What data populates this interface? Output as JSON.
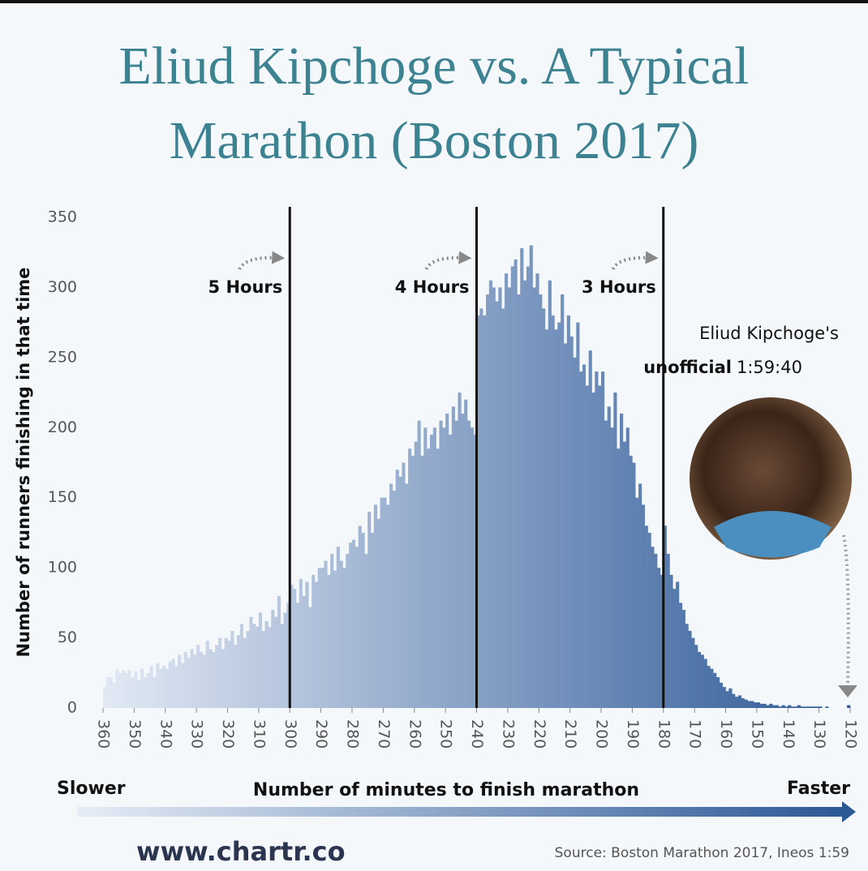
{
  "chart_data": {
    "type": "histogram",
    "title": [
      "Eliud Kipchoge vs. A Typical",
      "Marathon (Boston 2017)"
    ],
    "ylabel": "Number of runners finishing in that time",
    "xlabel": "Number of minutes to finish marathon",
    "direction_labels": {
      "left": "Slower",
      "right": "Faster"
    },
    "xlim": [
      360,
      120
    ],
    "ylim": [
      0,
      350
    ],
    "xticks": [
      360,
      350,
      340,
      330,
      320,
      310,
      300,
      290,
      280,
      270,
      260,
      250,
      240,
      230,
      220,
      210,
      200,
      190,
      180,
      170,
      160,
      150,
      140,
      130,
      120
    ],
    "yticks": [
      0,
      50,
      100,
      150,
      200,
      250,
      300,
      350
    ],
    "color_range": [
      "#e2e9f4",
      "#2c5896"
    ],
    "markers": [
      {
        "x": 300,
        "label": "5 Hours"
      },
      {
        "x": 240,
        "label": "4 Hours"
      },
      {
        "x": 180,
        "label": "3 Hours"
      }
    ],
    "annotation": {
      "line1": "Eliud Kipchoge's",
      "bold": "unofficial",
      "time": "1:59:40"
    },
    "bins": [
      120,
      121,
      122,
      123,
      124,
      125,
      126,
      127,
      128,
      129,
      130,
      131,
      132,
      133,
      134,
      135,
      136,
      137,
      138,
      139,
      140,
      141,
      142,
      143,
      144,
      145,
      146,
      147,
      148,
      149,
      150,
      151,
      152,
      153,
      154,
      155,
      156,
      157,
      158,
      159,
      160,
      161,
      162,
      163,
      164,
      165,
      166,
      167,
      168,
      169,
      170,
      171,
      172,
      173,
      174,
      175,
      176,
      177,
      178,
      179,
      180,
      181,
      182,
      183,
      184,
      185,
      186,
      187,
      188,
      189,
      190,
      191,
      192,
      193,
      194,
      195,
      196,
      197,
      198,
      199,
      200,
      201,
      202,
      203,
      204,
      205,
      206,
      207,
      208,
      209,
      210,
      211,
      212,
      213,
      214,
      215,
      216,
      217,
      218,
      219,
      220,
      221,
      222,
      223,
      224,
      225,
      226,
      227,
      228,
      229,
      230,
      231,
      232,
      233,
      234,
      235,
      236,
      237,
      238,
      239,
      240,
      241,
      242,
      243,
      244,
      245,
      246,
      247,
      248,
      249,
      250,
      251,
      252,
      253,
      254,
      255,
      256,
      257,
      258,
      259,
      260,
      261,
      262,
      263,
      264,
      265,
      266,
      267,
      268,
      269,
      270,
      271,
      272,
      273,
      274,
      275,
      276,
      277,
      278,
      279,
      280,
      281,
      282,
      283,
      284,
      285,
      286,
      287,
      288,
      289,
      290,
      291,
      292,
      293,
      294,
      295,
      296,
      297,
      298,
      299,
      300,
      301,
      302,
      303,
      304,
      305,
      306,
      307,
      308,
      309,
      310,
      311,
      312,
      313,
      314,
      315,
      316,
      317,
      318,
      319,
      320,
      321,
      322,
      323,
      324,
      325,
      326,
      327,
      328,
      329,
      330,
      331,
      332,
      333,
      334,
      335,
      336,
      337,
      338,
      339,
      340,
      341,
      342,
      343,
      344,
      345,
      346,
      347,
      348,
      349,
      350,
      351,
      352,
      353,
      354,
      355,
      356,
      357,
      358,
      359,
      360
    ],
    "counts": [
      2,
      0,
      0,
      0,
      0,
      0,
      0,
      1,
      0,
      1,
      1,
      1,
      1,
      1,
      1,
      1,
      2,
      1,
      1,
      2,
      1,
      2,
      1,
      2,
      2,
      3,
      2,
      3,
      3,
      4,
      4,
      5,
      5,
      6,
      7,
      9,
      8,
      10,
      14,
      12,
      15,
      18,
      22,
      25,
      28,
      30,
      35,
      38,
      40,
      45,
      50,
      55,
      60,
      70,
      75,
      90,
      85,
      95,
      110,
      130,
      95,
      100,
      110,
      115,
      125,
      130,
      145,
      160,
      150,
      175,
      180,
      200,
      190,
      210,
      185,
      225,
      200,
      215,
      205,
      240,
      230,
      240,
      225,
      255,
      230,
      245,
      240,
      275,
      250,
      265,
      280,
      260,
      295,
      275,
      270,
      280,
      305,
      270,
      285,
      295,
      310,
      300,
      330,
      315,
      305,
      328,
      295,
      320,
      315,
      300,
      310,
      285,
      300,
      290,
      300,
      305,
      295,
      280,
      285,
      280,
      195,
      200,
      205,
      220,
      210,
      225,
      205,
      215,
      195,
      210,
      200,
      205,
      185,
      200,
      195,
      185,
      200,
      180,
      205,
      190,
      180,
      185,
      160,
      175,
      165,
      170,
      155,
      160,
      145,
      150,
      150,
      135,
      145,
      125,
      140,
      110,
      125,
      130,
      115,
      120,
      118,
      110,
      100,
      105,
      115,
      98,
      110,
      95,
      105,
      100,
      100,
      90,
      95,
      72,
      90,
      80,
      92,
      75,
      85,
      88,
      75,
      68,
      60,
      80,
      65,
      70,
      58,
      62,
      55,
      68,
      58,
      60,
      65,
      55,
      50,
      60,
      52,
      45,
      55,
      48,
      50,
      42,
      50,
      45,
      40,
      42,
      48,
      38,
      40,
      45,
      38,
      42,
      36,
      40,
      32,
      38,
      30,
      35,
      33,
      28,
      30,
      28,
      32,
      22,
      30,
      25,
      22,
      28,
      20,
      26,
      22,
      27,
      25,
      27,
      25,
      28,
      18,
      22,
      22,
      15
    ]
  },
  "footer": {
    "site": "www.chartr.co",
    "source": "Source: Boston Marathon 2017, Ineos 1:59"
  }
}
